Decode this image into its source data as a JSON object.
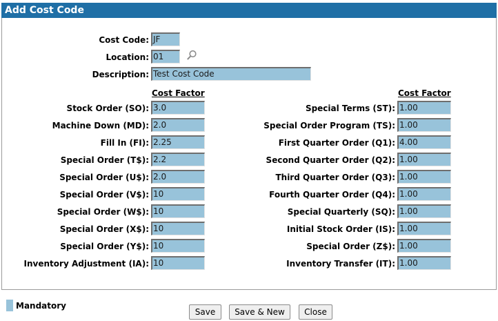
{
  "header": {
    "title": "Add Cost Code"
  },
  "form": {
    "cost_code": {
      "label": "Cost Code:",
      "value": "JF"
    },
    "location": {
      "label": "Location:",
      "value": "01",
      "lookup_icon": "search-icon"
    },
    "description": {
      "label": "Description:",
      "value": "Test Cost Code"
    }
  },
  "left_column": {
    "heading": "Cost Factor",
    "rows": [
      {
        "label": "Stock Order (SO):",
        "value": "3.0"
      },
      {
        "label": "Machine Down (MD):",
        "value": "2.0"
      },
      {
        "label": "Fill In (FI):",
        "value": "2.25"
      },
      {
        "label": "Special Order (T$):",
        "value": "2.2"
      },
      {
        "label": "Special Order (U$):",
        "value": "2.0"
      },
      {
        "label": "Special Order (V$):",
        "value": "10"
      },
      {
        "label": "Special Order (W$):",
        "value": "10"
      },
      {
        "label": "Special Order (X$):",
        "value": "10"
      },
      {
        "label": "Special Order (Y$):",
        "value": "10"
      },
      {
        "label": "Inventory Adjustment (IA):",
        "value": "10"
      }
    ]
  },
  "right_column": {
    "heading": "Cost Factor",
    "rows": [
      {
        "label": "Special Terms (ST):",
        "value": "1.00"
      },
      {
        "label": "Special Order Program (TS):",
        "value": "1.00"
      },
      {
        "label": "First Quarter Order (Q1):",
        "value": "4.00"
      },
      {
        "label": "Second Quarter Order (Q2):",
        "value": "1.00"
      },
      {
        "label": "Third Quarter Order (Q3):",
        "value": "1.00"
      },
      {
        "label": "Fourth Quarter Order (Q4):",
        "value": "1.00"
      },
      {
        "label": "Special Quarterly (SQ):",
        "value": "1.00"
      },
      {
        "label": "Initial Stock Order (IS):",
        "value": "1.00"
      },
      {
        "label": "Special Order (Z$):",
        "value": "1.00"
      },
      {
        "label": "Inventory Transfer (IT):",
        "value": "1.00"
      }
    ]
  },
  "legend": {
    "label": "Mandatory",
    "color": "#98c3da"
  },
  "buttons": {
    "save": "Save",
    "save_new": "Save & New",
    "close": "Close"
  },
  "colors": {
    "header_bg": "#1f6fa6",
    "field_bg": "#98c3da"
  }
}
